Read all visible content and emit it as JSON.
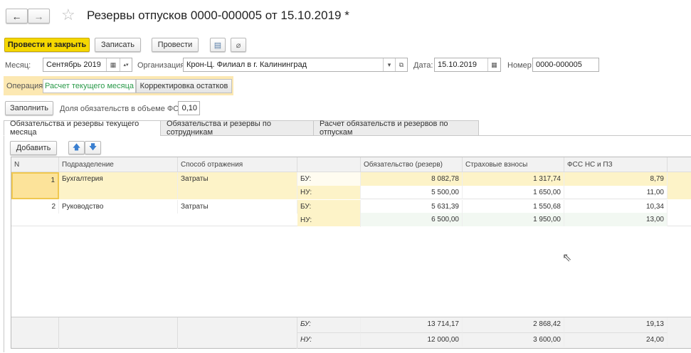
{
  "title": "Резервы отпусков 0000-000005 от 15.10.2019 *",
  "nav": {
    "back": "←",
    "forward": "→",
    "star": "☆"
  },
  "toolbar": {
    "post_close": "Провести и закрыть",
    "save": "Записать",
    "post": "Провести",
    "report_icon": "report-icon",
    "attach_icon": "paperclip-icon"
  },
  "fields": {
    "month_label": "Месяц:",
    "month": "Сентябрь 2019",
    "org_label": "Организация:",
    "org": "Крон-Ц. Филиал в г. Калининград",
    "date_label": "Дата:",
    "date": "15.10.2019",
    "number_label": "Номер:",
    "number": "0000-000005"
  },
  "operation": {
    "label": "Операция:",
    "options": [
      "Расчет текущего месяца",
      "Корректировка остатков"
    ],
    "selected": "Расчет текущего месяца"
  },
  "fill": {
    "button": "Заполнить",
    "share_label": "Доля обязательств в объеме ФОТ:",
    "share": "0,10"
  },
  "tabs": [
    "Обязательства и резервы текущего месяца",
    "Обязательства и резервы по сотрудникам",
    "Расчет обязательств и резервов по отпускам"
  ],
  "table": {
    "add": "Добавить",
    "up": "🡅",
    "down": "🡇",
    "headers": [
      "N",
      "Подразделение",
      "Способ отражения",
      "",
      "Обязательство (резерв)",
      "Страховые взносы",
      "ФСС НС и ПЗ"
    ],
    "rows": [
      {
        "n": "1",
        "dept": "Бухгалтерия",
        "method": "Затраты",
        "bu": [
          "БУ:",
          "8 082,78",
          "1 317,74",
          "8,79"
        ],
        "nu": [
          "НУ:",
          "5 500,00",
          "1 650,00",
          "11,00"
        ]
      },
      {
        "n": "2",
        "dept": "Руководство",
        "method": "Затраты",
        "bu": [
          "БУ:",
          "5 631,39",
          "1 550,68",
          "10,34"
        ],
        "nu": [
          "НУ:",
          "6 500,00",
          "1 950,00",
          "13,00"
        ]
      }
    ],
    "totals": {
      "bu": [
        "БУ:",
        "13 714,17",
        "2 868,42",
        "19,13"
      ],
      "nu": [
        "НУ:",
        "12 000,00",
        "3 600,00",
        "24,00"
      ]
    }
  },
  "colors": {
    "accent": "#f5d800",
    "selected_row": "#fdf3c8",
    "operation_band": "#fce8b2",
    "selected_option": "#2a9a4a"
  }
}
